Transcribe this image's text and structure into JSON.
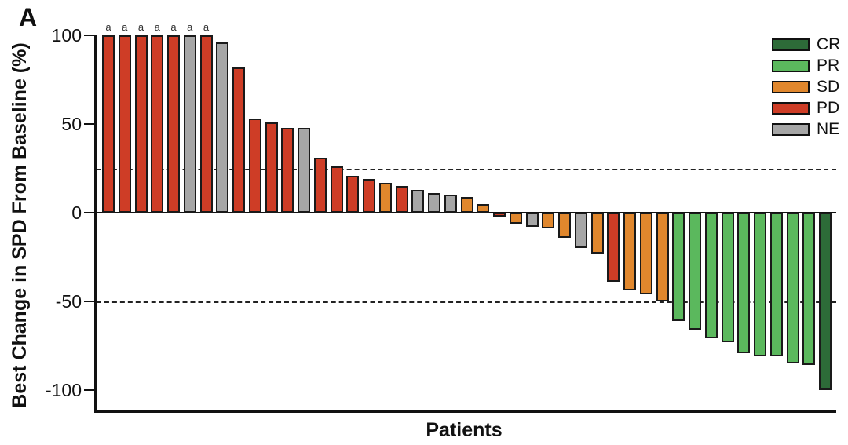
{
  "panel_label": "A",
  "chart_data": {
    "type": "bar",
    "variant": "waterfall",
    "title": "",
    "xlabel": "Patients",
    "ylabel": "Best Change in SPD From Baseline (%)",
    "ylim": [
      -100,
      100
    ],
    "yticks": [
      100,
      50,
      0,
      -50,
      -100
    ],
    "reference_lines": {
      "upper_dashed": 25,
      "zero": 0,
      "lower_dashed": -50
    },
    "grid": false,
    "footnote_marker": "a",
    "legend": {
      "position": "top-right",
      "entries": [
        {
          "label": "CR",
          "color": "#2d6b38"
        },
        {
          "label": "PR",
          "color": "#5bb85d"
        },
        {
          "label": "SD",
          "color": "#e0872d"
        },
        {
          "label": "PD",
          "color": "#ce3d26"
        },
        {
          "label": "NE",
          "color": "#a6a6a6"
        }
      ]
    },
    "bar_outline_color": "#1a1a1a",
    "bars": [
      {
        "value": 100,
        "response": "PD",
        "footnote": true
      },
      {
        "value": 100,
        "response": "PD",
        "footnote": true
      },
      {
        "value": 100,
        "response": "PD",
        "footnote": true
      },
      {
        "value": 100,
        "response": "PD",
        "footnote": true
      },
      {
        "value": 100,
        "response": "PD",
        "footnote": true
      },
      {
        "value": 100,
        "response": "NE",
        "footnote": true
      },
      {
        "value": 100,
        "response": "PD",
        "footnote": true
      },
      {
        "value": 96,
        "response": "NE",
        "footnote": false
      },
      {
        "value": 82,
        "response": "PD",
        "footnote": false
      },
      {
        "value": 53,
        "response": "PD",
        "footnote": false
      },
      {
        "value": 51,
        "response": "PD",
        "footnote": false
      },
      {
        "value": 48,
        "response": "PD",
        "footnote": false
      },
      {
        "value": 48,
        "response": "NE",
        "footnote": false
      },
      {
        "value": 31,
        "response": "PD",
        "footnote": false
      },
      {
        "value": 26,
        "response": "PD",
        "footnote": false
      },
      {
        "value": 21,
        "response": "PD",
        "footnote": false
      },
      {
        "value": 19,
        "response": "PD",
        "footnote": false
      },
      {
        "value": 17,
        "response": "SD",
        "footnote": false
      },
      {
        "value": 15,
        "response": "PD",
        "footnote": false
      },
      {
        "value": 13,
        "response": "NE",
        "footnote": false
      },
      {
        "value": 11,
        "response": "NE",
        "footnote": false
      },
      {
        "value": 10,
        "response": "NE",
        "footnote": false
      },
      {
        "value": 9,
        "response": "SD",
        "footnote": false
      },
      {
        "value": 5,
        "response": "SD",
        "footnote": false
      },
      {
        "value": -2,
        "response": "PD",
        "footnote": false
      },
      {
        "value": -6,
        "response": "SD",
        "footnote": false
      },
      {
        "value": -8,
        "response": "NE",
        "footnote": false
      },
      {
        "value": -9,
        "response": "SD",
        "footnote": false
      },
      {
        "value": -14,
        "response": "SD",
        "footnote": false
      },
      {
        "value": -20,
        "response": "NE",
        "footnote": false
      },
      {
        "value": -23,
        "response": "SD",
        "footnote": false
      },
      {
        "value": -39,
        "response": "PD",
        "footnote": false
      },
      {
        "value": -44,
        "response": "SD",
        "footnote": false
      },
      {
        "value": -46,
        "response": "SD",
        "footnote": false
      },
      {
        "value": -50,
        "response": "SD",
        "footnote": false
      },
      {
        "value": -61,
        "response": "PR",
        "footnote": false
      },
      {
        "value": -66,
        "response": "PR",
        "footnote": false
      },
      {
        "value": -71,
        "response": "PR",
        "footnote": false
      },
      {
        "value": -73,
        "response": "PR",
        "footnote": false
      },
      {
        "value": -79,
        "response": "PR",
        "footnote": false
      },
      {
        "value": -81,
        "response": "PR",
        "footnote": false
      },
      {
        "value": -81,
        "response": "PR",
        "footnote": false
      },
      {
        "value": -85,
        "response": "PR",
        "footnote": false
      },
      {
        "value": -86,
        "response": "PR",
        "footnote": false
      },
      {
        "value": -100,
        "response": "CR",
        "footnote": false
      }
    ]
  }
}
